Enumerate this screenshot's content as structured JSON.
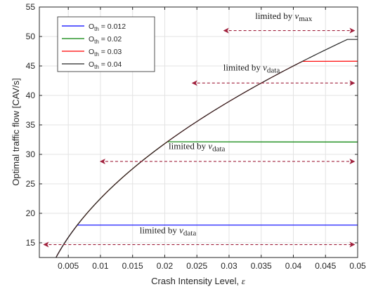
{
  "chart_data": {
    "type": "line",
    "xlabel": "Crash Intensity Level, ",
    "xlabel_symbol": "ε",
    "ylabel": "Optimal traffic flow [CAV/s]",
    "xlim": [
      0.0005,
      0.05
    ],
    "ylim": [
      12.5,
      55
    ],
    "x_ticks": [
      0.005,
      0.01,
      0.015,
      0.02,
      0.025,
      0.03,
      0.035,
      0.04,
      0.045,
      0.05
    ],
    "x_tick_labels": [
      "0.005",
      "0.01",
      "0.015",
      "0.02",
      "0.025",
      "0.03",
      "0.035",
      "0.04",
      "0.045",
      "0.05"
    ],
    "y_ticks": [
      15,
      20,
      25,
      30,
      35,
      40,
      45,
      50,
      55
    ],
    "y_tick_labels": [
      "15",
      "20",
      "25",
      "30",
      "35",
      "40",
      "45",
      "50",
      "55"
    ],
    "grid": true,
    "legend_position": "top-left",
    "curve_model": "y = 225 * sqrt(x)",
    "series": [
      {
        "name_main": "O",
        "name_sub": "th",
        "name_value": " = 0.012",
        "color": "#0000ff",
        "plateau": 18.0,
        "x_break": 0.0064
      },
      {
        "name_main": "O",
        "name_sub": "th",
        "name_value": " = 0.02",
        "color": "#008000",
        "plateau": 32.1,
        "x_break": 0.0204
      },
      {
        "name_main": "O",
        "name_sub": "th",
        "name_value": " = 0.03",
        "color": "#ff0000",
        "plateau": 45.8,
        "x_break": 0.0414
      },
      {
        "name_main": "O",
        "name_sub": "th",
        "name_value": " = 0.04",
        "color": "#262626",
        "plateau": 49.5,
        "x_break": 0.0484
      }
    ],
    "annotations": [
      {
        "text_main": "limited by ",
        "text_var": "v",
        "text_sub": "max",
        "color": "#a0203c",
        "arrow_x": [
          0.0292,
          0.0495
        ],
        "arrow_y": 51.0,
        "label_x": 0.0385,
        "label_y": 53.0
      },
      {
        "text_main": "limited by ",
        "text_var": "v",
        "text_sub": "data",
        "color": "#a0203c",
        "arrow_x": [
          0.0243,
          0.0495
        ],
        "arrow_y": 42.1,
        "label_x": 0.0335,
        "label_y": 44.2
      },
      {
        "text_main": "limited by ",
        "text_var": "v",
        "text_sub": "data",
        "color": "#a0203c",
        "arrow_x": [
          0.01,
          0.0495
        ],
        "arrow_y": 28.8,
        "label_x": 0.025,
        "label_y": 30.9
      },
      {
        "text_main": "limited by ",
        "text_var": "v",
        "text_sub": "data",
        "color": "#a0203c",
        "arrow_x": [
          0.0012,
          0.0495
        ],
        "arrow_y": 14.7,
        "label_x": 0.0205,
        "label_y": 16.6
      }
    ]
  }
}
